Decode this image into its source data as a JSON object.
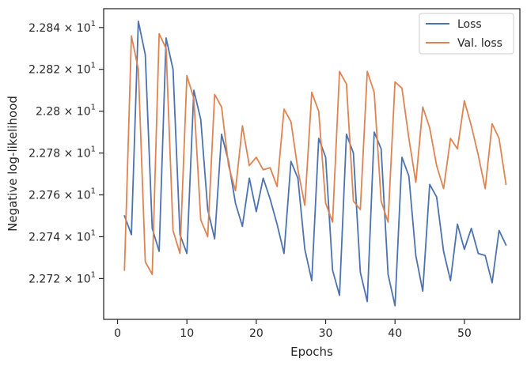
{
  "chart_data": {
    "type": "line",
    "title": "",
    "xlabel": "Epochs",
    "ylabel": "Negative log-likelihood",
    "xlim": [
      -2,
      58
    ],
    "ylim": [
      22.7005,
      22.849
    ],
    "xticks": [
      0,
      10,
      20,
      30,
      40,
      50
    ],
    "xtick_labels": [
      "0",
      "10",
      "20",
      "30",
      "40",
      "50"
    ],
    "yticks": [
      22.72,
      22.74,
      22.76,
      22.78,
      22.8,
      22.82,
      22.84
    ],
    "ytick_labels": [
      {
        "mantissa": "2.272",
        "exp": "1"
      },
      {
        "mantissa": "2.274",
        "exp": "1"
      },
      {
        "mantissa": "2.276",
        "exp": "1"
      },
      {
        "mantissa": "2.278",
        "exp": "1"
      },
      {
        "mantissa": "2.28",
        "exp": "1"
      },
      {
        "mantissa": "2.282",
        "exp": "1"
      },
      {
        "mantissa": "2.284",
        "exp": "1"
      }
    ],
    "ytick_base": "10",
    "grid": false,
    "legend_position": "top-right",
    "x": [
      1,
      2,
      3,
      4,
      5,
      6,
      7,
      8,
      9,
      10,
      11,
      12,
      13,
      14,
      15,
      16,
      17,
      18,
      19,
      20,
      21,
      22,
      23,
      24,
      25,
      26,
      27,
      28,
      29,
      30,
      31,
      32,
      33,
      34,
      35,
      36,
      37,
      38,
      39,
      40,
      41,
      42,
      43,
      44,
      45,
      46,
      47,
      48,
      49,
      50,
      51,
      52,
      53,
      54,
      55,
      56
    ],
    "series": [
      {
        "name": "Loss",
        "color": "#4c72b0",
        "values": [
          22.75,
          22.741,
          22.843,
          22.827,
          22.744,
          22.733,
          22.835,
          22.82,
          22.741,
          22.732,
          22.81,
          22.796,
          22.753,
          22.739,
          22.789,
          22.776,
          22.756,
          22.745,
          22.768,
          22.752,
          22.768,
          22.758,
          22.746,
          22.732,
          22.776,
          22.768,
          22.734,
          22.719,
          22.787,
          22.778,
          22.724,
          22.712,
          22.789,
          22.78,
          22.723,
          22.709,
          22.79,
          22.782,
          22.722,
          22.707,
          22.778,
          22.769,
          22.731,
          22.714,
          22.765,
          22.759,
          22.733,
          22.719,
          22.746,
          22.734,
          22.744,
          22.732,
          22.731,
          22.718,
          22.743,
          22.736
        ]
      },
      {
        "name": "Val. loss",
        "color": "#dd8452",
        "values": [
          22.724,
          22.836,
          22.82,
          22.728,
          22.722,
          22.837,
          22.83,
          22.743,
          22.732,
          22.817,
          22.806,
          22.748,
          22.74,
          22.808,
          22.802,
          22.774,
          22.762,
          22.793,
          22.774,
          22.778,
          22.772,
          22.773,
          22.764,
          22.801,
          22.795,
          22.772,
          22.755,
          22.809,
          22.8,
          22.756,
          22.747,
          22.819,
          22.813,
          22.757,
          22.753,
          22.819,
          22.809,
          22.757,
          22.747,
          22.814,
          22.811,
          22.787,
          22.766,
          22.802,
          22.792,
          22.774,
          22.763,
          22.787,
          22.782,
          22.805,
          22.793,
          22.779,
          22.763,
          22.794,
          22.787,
          22.765
        ]
      }
    ]
  }
}
